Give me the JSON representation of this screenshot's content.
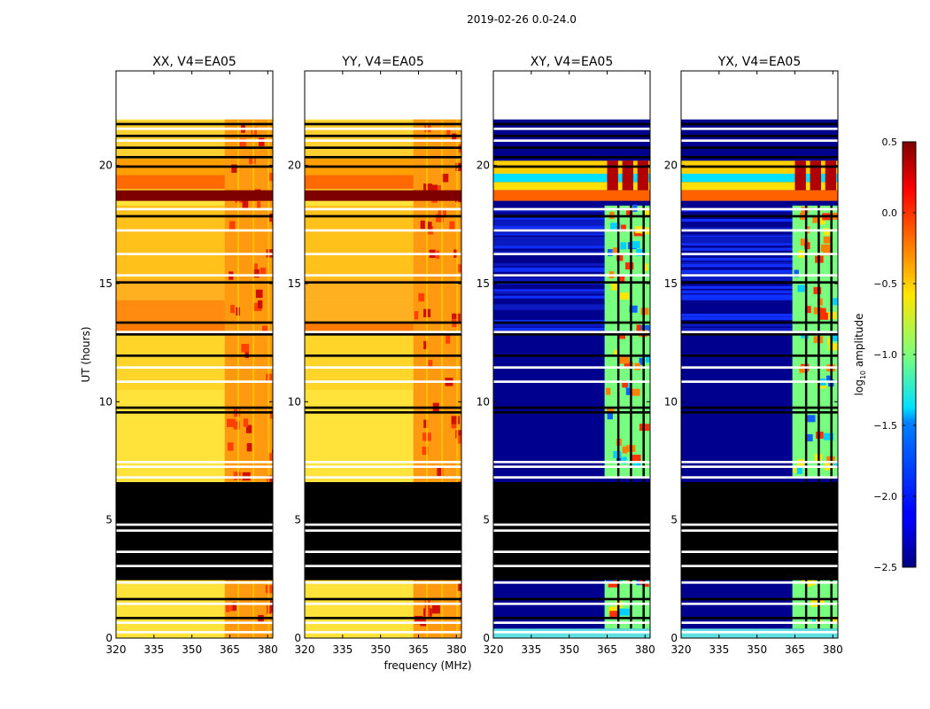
{
  "figure": {
    "suptitle": "2019-02-26 0.0-24.0",
    "xlabel": "frequency (MHz)",
    "ylabel": "UT (hours)",
    "colorbar_label_prefix": "log",
    "colorbar_label_sub": "10",
    "colorbar_label_suffix": " amplitude"
  },
  "chart_data": {
    "type": "heatmap",
    "title": "2019-02-26 0.0-24.0",
    "xlabel": "frequency (MHz)",
    "ylabel": "UT (hours)",
    "xlim": [
      320,
      382
    ],
    "ylim": [
      0,
      24
    ],
    "xticks": [
      320,
      335,
      350,
      365,
      380
    ],
    "yticks": [
      0,
      5,
      10,
      15,
      20
    ],
    "colorbar": {
      "label": "log10 amplitude",
      "range": [
        -2.5,
        0.5
      ],
      "ticks": [
        0.5,
        0.0,
        -0.5,
        -1.0,
        -1.5,
        -2.0,
        -2.5
      ],
      "tick_labels": [
        "0.5",
        "0.0",
        "−0.5",
        "−1.0",
        "−1.5",
        "−2.0",
        "−2.5"
      ],
      "colormap": "jet"
    },
    "panels": [
      {
        "title": "XX, V4=EA05",
        "kind": "parallel"
      },
      {
        "title": "YY, V4=EA05",
        "kind": "parallel"
      },
      {
        "title": "XY, V4=EA05",
        "kind": "cross"
      },
      {
        "title": "YX, V4=EA05",
        "kind": "cross"
      }
    ],
    "structure": {
      "data_end_hour": 21.95,
      "flagged_black_hours": [
        [
          2.45,
          6.6
        ]
      ],
      "bright_rfi_hours": [
        [
          18.5,
          18.95
        ]
      ],
      "cross_active_band_mhz": [
        364,
        383
      ],
      "cross_active_hours": [
        [
          0.4,
          2.45
        ],
        [
          6.8,
          13.0
        ],
        [
          13.0,
          18.3
        ]
      ],
      "cross_bright_hours": [
        [
          18.95,
          20.2
        ]
      ],
      "parallel_high_band_mhz": [
        363,
        382
      ],
      "gaps_white_hours": [
        4.5,
        4.75,
        6.75,
        7.2,
        7.4,
        10.8,
        11.4,
        12.9,
        15.3,
        16.2,
        17.2,
        18.1,
        21.0,
        21.5,
        0.2,
        0.6,
        1.4,
        2.3,
        3.0,
        3.6
      ],
      "gaps_black_hours": [
        0.8,
        1.6,
        5.2,
        9.5,
        11.9,
        12.8,
        15.0,
        17.8,
        19.9,
        20.3,
        20.7,
        21.2,
        21.7,
        13.3,
        9.7
      ]
    }
  }
}
